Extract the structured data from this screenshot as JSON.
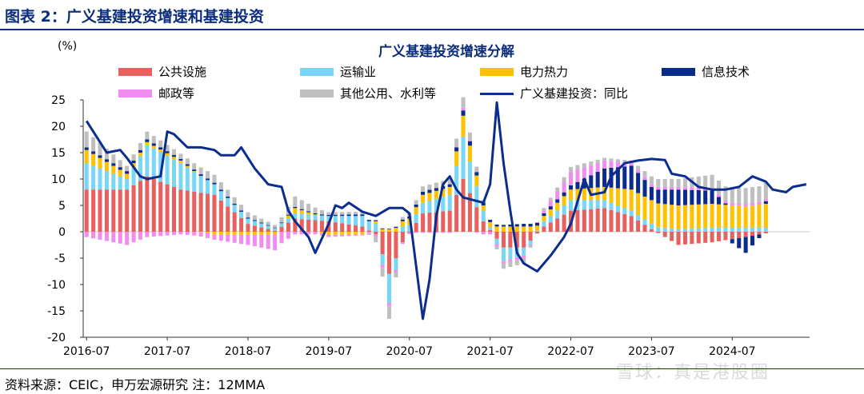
{
  "header": {
    "title": "图表 2：广义基建投资增速和基建投资"
  },
  "footer": {
    "source": "资料来源：CEIC，申万宏源研究 注：12MMA"
  },
  "watermark": "雪球：真是港股圈",
  "colors": {
    "brand": "#0b2d7a"
  },
  "chart_data": {
    "type": "bar",
    "stacked": true,
    "title": "广义基建投资增速分解",
    "ylabel": "(%)",
    "ylim": [
      -20,
      25
    ],
    "yticks": [
      -20,
      -15,
      -10,
      -5,
      0,
      5,
      10,
      15,
      20,
      25
    ],
    "xtick_labels": [
      "2016-07",
      "2017-07",
      "2018-07",
      "2019-07",
      "2020-07",
      "2021-07",
      "2022-07",
      "2023-07",
      "2024-07"
    ],
    "x_start": "2016-07",
    "x_end": "2024-12",
    "legend_position": "top",
    "grid": false,
    "series": [
      {
        "name": "公共设施",
        "color": "#e8615f"
      },
      {
        "name": "运输业",
        "color": "#79d6f5"
      },
      {
        "name": "电力热力",
        "color": "#ffc100"
      },
      {
        "name": "信息技术",
        "color": "#0a2b8c"
      },
      {
        "name": "邮政等",
        "color": "#f18df0"
      },
      {
        "name": "其他公用、水利等",
        "color": "#bfbfbf"
      },
      {
        "name": "广义基建投资：同比",
        "color": "#0b2d8e",
        "kind": "line"
      }
    ],
    "component_anchors": [
      {
        "date": "2016-07",
        "values": [
          8.0,
          5.0,
          2.5,
          0.5,
          -1.0,
          3.0
        ]
      },
      {
        "date": "2017-01",
        "values": [
          8.0,
          2.0,
          1.0,
          0.5,
          -2.5,
          1.0
        ]
      },
      {
        "date": "2017-04",
        "values": [
          10.5,
          6.0,
          0.5,
          0.5,
          -1.0,
          1.5
        ]
      },
      {
        "date": "2017-09",
        "values": [
          8.0,
          5.0,
          0.5,
          0.3,
          -0.5,
          1.0
        ]
      },
      {
        "date": "2018-02",
        "values": [
          7.0,
          2.0,
          -0.5,
          0.3,
          -1.0,
          1.5
        ]
      },
      {
        "date": "2018-07",
        "values": [
          1.5,
          1.0,
          -0.5,
          0.2,
          -2.0,
          1.0
        ]
      },
      {
        "date": "2018-11",
        "values": [
          0.2,
          0.5,
          -0.5,
          0.1,
          -3.0,
          0.5
        ]
      },
      {
        "date": "2019-02",
        "values": [
          2.5,
          1.0,
          1.0,
          0.2,
          -0.5,
          2.0
        ]
      },
      {
        "date": "2019-07",
        "values": [
          2.0,
          1.0,
          -0.5,
          0.2,
          -0.5,
          0.5
        ]
      },
      {
        "date": "2019-12",
        "values": [
          1.0,
          2.0,
          -0.5,
          0.3,
          -0.2,
          0.5
        ]
      },
      {
        "date": "2020-02",
        "values": [
          -0.5,
          1.5,
          0.5,
          0.2,
          -0.5,
          -1.0
        ]
      },
      {
        "date": "2020-04",
        "values": [
          -8.0,
          -5.5,
          0.5,
          0.1,
          -0.5,
          -2.5
        ]
      },
      {
        "date": "2020-06",
        "values": [
          -2.0,
          1.0,
          1.0,
          0.3,
          -0.3,
          0.5
        ]
      },
      {
        "date": "2020-09",
        "values": [
          3.5,
          2.0,
          1.5,
          0.6,
          -0.2,
          1.0
        ]
      },
      {
        "date": "2021-01",
        "values": [
          4.0,
          3.0,
          1.5,
          0.5,
          -0.2,
          1.0
        ]
      },
      {
        "date": "2021-03",
        "values": [
          10.0,
          8.0,
          4.0,
          1.0,
          0.5,
          2.0
        ]
      },
      {
        "date": "2021-06",
        "values": [
          2.0,
          2.0,
          1.0,
          0.5,
          -0.5,
          0.5
        ]
      },
      {
        "date": "2021-09",
        "values": [
          -3.0,
          -2.5,
          1.0,
          0.3,
          -0.5,
          -1.0
        ]
      },
      {
        "date": "2021-12",
        "values": [
          -3.0,
          -1.5,
          1.0,
          0.5,
          -0.5,
          -1.0
        ]
      },
      {
        "date": "2022-03",
        "values": [
          1.0,
          1.0,
          1.0,
          0.5,
          0.5,
          0.5
        ]
      },
      {
        "date": "2022-07",
        "values": [
          4.0,
          2.0,
          2.0,
          0.8,
          2.5,
          1.0
        ]
      },
      {
        "date": "2022-12",
        "values": [
          4.5,
          1.5,
          2.5,
          3.5,
          1.5,
          0.5
        ]
      },
      {
        "date": "2023-04",
        "values": [
          3.0,
          1.0,
          4.0,
          4.5,
          0.5,
          0.5
        ]
      },
      {
        "date": "2023-07",
        "values": [
          0.5,
          1.0,
          4.5,
          2.5,
          0.5,
          1.5
        ]
      },
      {
        "date": "2023-11",
        "values": [
          -2.5,
          0.5,
          4.5,
          3.0,
          0.5,
          1.5
        ]
      },
      {
        "date": "2024-04",
        "values": [
          -2.0,
          0.8,
          4.5,
          2.5,
          0.5,
          2.5
        ]
      },
      {
        "date": "2024-09",
        "values": [
          -1.0,
          0.8,
          4.0,
          -3.0,
          0.5,
          3.0
        ]
      },
      {
        "date": "2024-12",
        "values": [
          -0.3,
          0.8,
          4.5,
          0.5,
          0.5,
          3.0
        ]
      }
    ],
    "line_anchors": [
      {
        "date": "2016-07",
        "value": 21.0
      },
      {
        "date": "2016-09",
        "value": 17.0
      },
      {
        "date": "2016-10",
        "value": 15.0
      },
      {
        "date": "2016-12",
        "value": 15.5
      },
      {
        "date": "2017-01",
        "value": 14.0
      },
      {
        "date": "2017-03",
        "value": 10.5
      },
      {
        "date": "2017-04",
        "value": 10.0
      },
      {
        "date": "2017-06",
        "value": 10.5
      },
      {
        "date": "2017-07",
        "value": 19.0
      },
      {
        "date": "2017-08",
        "value": 18.5
      },
      {
        "date": "2017-10",
        "value": 16.0
      },
      {
        "date": "2017-12",
        "value": 16.0
      },
      {
        "date": "2018-02",
        "value": 15.5
      },
      {
        "date": "2018-03",
        "value": 14.5
      },
      {
        "date": "2018-05",
        "value": 14.5
      },
      {
        "date": "2018-06",
        "value": 16.0
      },
      {
        "date": "2018-08",
        "value": 12.0
      },
      {
        "date": "2018-10",
        "value": 9.0
      },
      {
        "date": "2018-12",
        "value": 8.5
      },
      {
        "date": "2019-01",
        "value": 4.0
      },
      {
        "date": "2019-02",
        "value": 2.0
      },
      {
        "date": "2019-04",
        "value": -1.0
      },
      {
        "date": "2019-05",
        "value": -4.0
      },
      {
        "date": "2019-07",
        "value": 1.5
      },
      {
        "date": "2019-08",
        "value": 5.0
      },
      {
        "date": "2019-09",
        "value": 4.5
      },
      {
        "date": "2019-10",
        "value": 5.5
      },
      {
        "date": "2019-12",
        "value": 3.8
      },
      {
        "date": "2020-02",
        "value": 3.0
      },
      {
        "date": "2020-04",
        "value": 4.5
      },
      {
        "date": "2020-06",
        "value": 4.5
      },
      {
        "date": "2020-07",
        "value": 3.5
      },
      {
        "date": "2020-09",
        "value": -16.5
      },
      {
        "date": "2020-10",
        "value": -9.0
      },
      {
        "date": "2020-11",
        "value": 3.0
      },
      {
        "date": "2020-12",
        "value": 9.0
      },
      {
        "date": "2021-01",
        "value": 10.5
      },
      {
        "date": "2021-02",
        "value": 8.0
      },
      {
        "date": "2021-03",
        "value": 6.5
      },
      {
        "date": "2021-06",
        "value": 5.5
      },
      {
        "date": "2021-07",
        "value": 9.0
      },
      {
        "date": "2021-08",
        "value": 24.5
      },
      {
        "date": "2021-09",
        "value": 13.0
      },
      {
        "date": "2021-10",
        "value": 4.0
      },
      {
        "date": "2021-11",
        "value": -4.0
      },
      {
        "date": "2021-12",
        "value": -6.0
      },
      {
        "date": "2022-02",
        "value": -7.5
      },
      {
        "date": "2022-04",
        "value": -4.5
      },
      {
        "date": "2022-06",
        "value": -1.0
      },
      {
        "date": "2022-07",
        "value": 1.5
      },
      {
        "date": "2022-09",
        "value": 10.0
      },
      {
        "date": "2022-10",
        "value": 7.0
      },
      {
        "date": "2022-12",
        "value": 7.5
      },
      {
        "date": "2023-01",
        "value": 10.5
      },
      {
        "date": "2023-03",
        "value": 13.0
      },
      {
        "date": "2023-05",
        "value": 13.5
      },
      {
        "date": "2023-07",
        "value": 13.8
      },
      {
        "date": "2023-09",
        "value": 13.6
      },
      {
        "date": "2023-10",
        "value": 11.0
      },
      {
        "date": "2023-12",
        "value": 10.5
      },
      {
        "date": "2024-02",
        "value": 8.5
      },
      {
        "date": "2024-04",
        "value": 8.0
      },
      {
        "date": "2024-06",
        "value": 8.0
      },
      {
        "date": "2024-08",
        "value": 8.5
      },
      {
        "date": "2024-10",
        "value": 10.5
      },
      {
        "date": "2024-12",
        "value": 9.5
      },
      {
        "date": "2025-01",
        "value": 8.0
      },
      {
        "date": "2025-03",
        "value": 7.5
      },
      {
        "date": "2025-04",
        "value": 8.5
      },
      {
        "date": "2025-06",
        "value": 9.0
      }
    ]
  }
}
